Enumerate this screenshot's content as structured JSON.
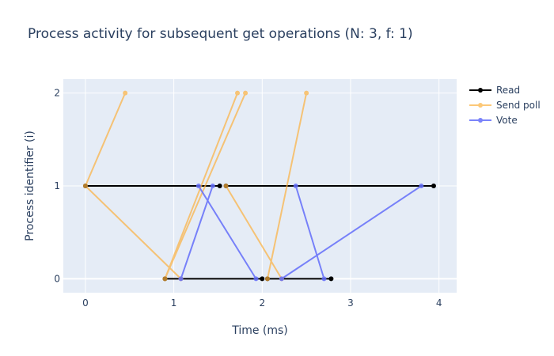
{
  "chart_data": {
    "type": "line",
    "title": "Process activity for subsequent get operations (N: 3, f: 1)",
    "xlabel": "Time (ms)",
    "ylabel": "Process identifier (i)",
    "xlim": [
      -0.25,
      4.2
    ],
    "ylim": [
      -0.15,
      2.15
    ],
    "x_ticks": [
      0,
      1,
      2,
      3,
      4
    ],
    "y_ticks": [
      0,
      1,
      2
    ],
    "grid": true,
    "legend_position": "top-right",
    "series": [
      {
        "name": "Read",
        "color": "#000000",
        "opacity": 1,
        "segments": [
          [
            [
              0,
              1
            ],
            [
              1.52,
              1
            ]
          ],
          [
            [
              0.9,
              0
            ],
            [
              2.0,
              0
            ]
          ],
          [
            [
              1.59,
              1
            ],
            [
              3.94,
              1
            ]
          ],
          [
            [
              2.06,
              0
            ],
            [
              2.78,
              0
            ]
          ]
        ]
      },
      {
        "name": "Send poll",
        "color": "#fcb13f",
        "opacity": 0.7,
        "segments": [
          [
            [
              0,
              1
            ],
            [
              0.45,
              2
            ]
          ],
          [
            [
              0,
              1
            ],
            [
              1.08,
              0
            ]
          ],
          [
            [
              0.9,
              0
            ],
            [
              1.72,
              2
            ]
          ],
          [
            [
              0.9,
              0
            ],
            [
              1.81,
              2
            ]
          ],
          [
            [
              1.59,
              1
            ],
            [
              2.22,
              0
            ]
          ],
          [
            [
              2.06,
              0
            ],
            [
              2.5,
              2
            ]
          ]
        ]
      },
      {
        "name": "Vote",
        "color": "#636efa",
        "opacity": 0.85,
        "segments": [
          [
            [
              1.08,
              0
            ],
            [
              1.44,
              1
            ]
          ],
          [
            [
              1.28,
              1
            ],
            [
              1.93,
              0
            ]
          ],
          [
            [
              2.22,
              0
            ],
            [
              3.8,
              1
            ]
          ],
          [
            [
              2.38,
              1
            ],
            [
              2.7,
              0
            ]
          ]
        ]
      }
    ]
  }
}
